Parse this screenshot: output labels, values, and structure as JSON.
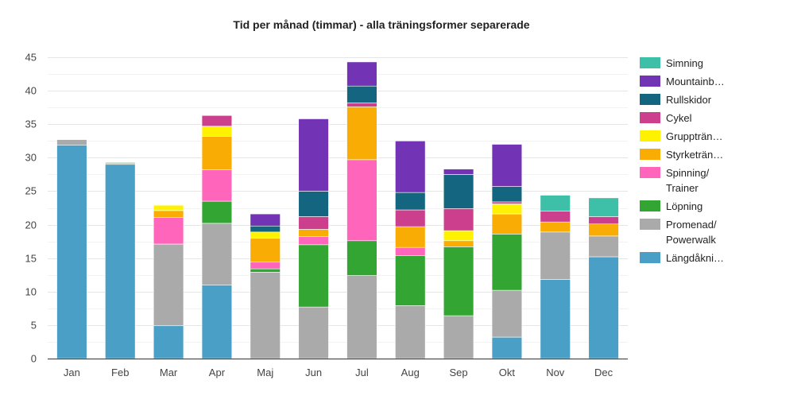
{
  "chart_data": {
    "type": "bar",
    "stacked": true,
    "title": "Tid per månad (timmar) - alla träningsformer separerade",
    "xlabel": "",
    "ylabel": "",
    "ylim": [
      0,
      45
    ],
    "yticks": [
      0,
      5,
      10,
      15,
      20,
      25,
      30,
      35,
      40,
      45
    ],
    "grid": true,
    "legend_position": "right",
    "categories": [
      "Jan",
      "Feb",
      "Mar",
      "Apr",
      "Maj",
      "Jun",
      "Jul",
      "Aug",
      "Sep",
      "Okt",
      "Nov",
      "Dec"
    ],
    "series": [
      {
        "name": "Längdåkni…",
        "color": "#4a9fc6",
        "values": [
          31.9,
          29.0,
          4.9,
          11.0,
          0,
          0,
          0,
          0,
          0,
          3.2,
          11.8,
          15.2
        ]
      },
      {
        "name": "Promenad/ Powerwalk",
        "color": "#aaaaaa",
        "values": [
          0.8,
          0.2,
          12.2,
          9.2,
          12.9,
          7.7,
          12.4,
          7.9,
          6.4,
          7.0,
          7.1,
          3.1
        ]
      },
      {
        "name": "Löpning",
        "color": "#33a532",
        "values": [
          0,
          0.1,
          0,
          3.3,
          0.5,
          9.3,
          5.2,
          7.5,
          10.3,
          8.4,
          0,
          0
        ]
      },
      {
        "name": "Spinning/ Trainer",
        "color": "#ff66bb",
        "values": [
          0,
          0,
          4.0,
          4.7,
          1.0,
          1.2,
          12.1,
          1.2,
          0,
          0,
          0,
          0
        ]
      },
      {
        "name": "Styrketrän…",
        "color": "#f9ac03",
        "values": [
          0,
          0,
          1.0,
          5.0,
          3.6,
          1.1,
          7.9,
          3.1,
          0.9,
          3.0,
          1.5,
          1.8
        ]
      },
      {
        "name": "Gruppträn…",
        "color": "#fff200",
        "values": [
          0,
          0,
          0.8,
          1.5,
          0.9,
          0,
          0,
          0,
          1.5,
          1.5,
          0,
          0
        ]
      },
      {
        "name": "Cykel",
        "color": "#cc3f8d",
        "values": [
          0,
          0,
          0,
          1.6,
          0,
          1.9,
          0.6,
          2.5,
          3.3,
          0.3,
          1.6,
          1.1
        ]
      },
      {
        "name": "Rullskidor",
        "color": "#14657f",
        "values": [
          0,
          0,
          0,
          0,
          0.9,
          3.8,
          2.5,
          2.6,
          5.1,
          2.3,
          0,
          0
        ]
      },
      {
        "name": "Mountainb…",
        "color": "#7333b5",
        "values": [
          0,
          0,
          0,
          0,
          1.8,
          10.8,
          3.6,
          7.7,
          0.8,
          6.3,
          0,
          0
        ]
      },
      {
        "name": "Simning",
        "color": "#3dbfa8",
        "values": [
          0,
          0,
          0,
          0,
          0,
          0,
          0,
          0,
          0,
          0,
          2.4,
          2.8
        ]
      }
    ]
  }
}
